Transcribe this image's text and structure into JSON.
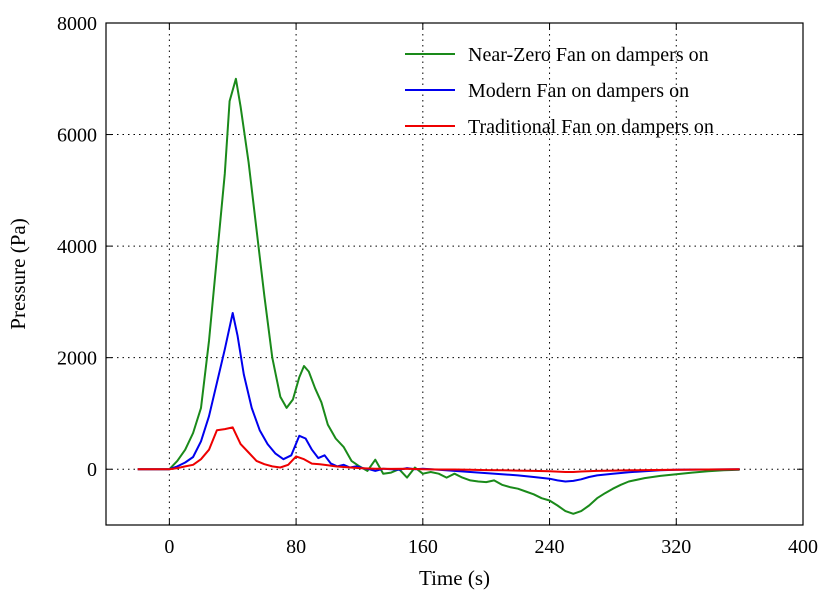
{
  "chart_data": {
    "type": "line",
    "xlabel": "Time (s)",
    "ylabel": "Pressure (Pa)",
    "xlim": [
      -40,
      400
    ],
    "ylim": [
      -1000,
      8000
    ],
    "xticks": [
      0,
      80,
      160,
      240,
      320,
      400
    ],
    "yticks": [
      0,
      2000,
      4000,
      6000,
      8000
    ],
    "grid": true,
    "legend_position": "top-right",
    "series": [
      {
        "name": "Near-Zero Fan on dampers on",
        "color": "#1a8a1a",
        "points": [
          [
            -20,
            0
          ],
          [
            -10,
            0
          ],
          [
            0,
            0
          ],
          [
            5,
            150
          ],
          [
            10,
            350
          ],
          [
            15,
            650
          ],
          [
            20,
            1100
          ],
          [
            25,
            2300
          ],
          [
            30,
            3800
          ],
          [
            35,
            5300
          ],
          [
            38,
            6600
          ],
          [
            42,
            7000
          ],
          [
            45,
            6500
          ],
          [
            50,
            5500
          ],
          [
            55,
            4300
          ],
          [
            60,
            3100
          ],
          [
            65,
            2000
          ],
          [
            70,
            1300
          ],
          [
            74,
            1100
          ],
          [
            78,
            1250
          ],
          [
            82,
            1650
          ],
          [
            85,
            1850
          ],
          [
            88,
            1750
          ],
          [
            92,
            1450
          ],
          [
            96,
            1200
          ],
          [
            100,
            800
          ],
          [
            105,
            550
          ],
          [
            110,
            400
          ],
          [
            115,
            150
          ],
          [
            120,
            50
          ],
          [
            125,
            -30
          ],
          [
            130,
            170
          ],
          [
            135,
            -80
          ],
          [
            140,
            -60
          ],
          [
            145,
            0
          ],
          [
            150,
            -150
          ],
          [
            155,
            30
          ],
          [
            160,
            -80
          ],
          [
            165,
            -50
          ],
          [
            170,
            -80
          ],
          [
            175,
            -150
          ],
          [
            180,
            -80
          ],
          [
            185,
            -150
          ],
          [
            190,
            -200
          ],
          [
            195,
            -220
          ],
          [
            200,
            -230
          ],
          [
            205,
            -200
          ],
          [
            210,
            -280
          ],
          [
            215,
            -320
          ],
          [
            220,
            -350
          ],
          [
            225,
            -400
          ],
          [
            230,
            -450
          ],
          [
            235,
            -520
          ],
          [
            240,
            -560
          ],
          [
            245,
            -650
          ],
          [
            250,
            -750
          ],
          [
            255,
            -800
          ],
          [
            260,
            -750
          ],
          [
            265,
            -650
          ],
          [
            270,
            -520
          ],
          [
            275,
            -430
          ],
          [
            280,
            -350
          ],
          [
            285,
            -280
          ],
          [
            290,
            -220
          ],
          [
            300,
            -160
          ],
          [
            310,
            -120
          ],
          [
            320,
            -90
          ],
          [
            330,
            -60
          ],
          [
            340,
            -35
          ],
          [
            350,
            -20
          ],
          [
            360,
            -10
          ]
        ]
      },
      {
        "name": "Modern Fan on dampers on",
        "color": "#0000ee",
        "points": [
          [
            -20,
            0
          ],
          [
            -10,
            0
          ],
          [
            0,
            0
          ],
          [
            5,
            50
          ],
          [
            10,
            120
          ],
          [
            15,
            220
          ],
          [
            20,
            500
          ],
          [
            25,
            950
          ],
          [
            30,
            1550
          ],
          [
            35,
            2150
          ],
          [
            40,
            2800
          ],
          [
            43,
            2400
          ],
          [
            47,
            1700
          ],
          [
            52,
            1100
          ],
          [
            57,
            700
          ],
          [
            62,
            450
          ],
          [
            67,
            280
          ],
          [
            72,
            180
          ],
          [
            77,
            250
          ],
          [
            82,
            600
          ],
          [
            86,
            550
          ],
          [
            90,
            350
          ],
          [
            94,
            200
          ],
          [
            98,
            250
          ],
          [
            102,
            100
          ],
          [
            106,
            50
          ],
          [
            110,
            80
          ],
          [
            114,
            30
          ],
          [
            118,
            50
          ],
          [
            122,
            20
          ],
          [
            126,
            0
          ],
          [
            130,
            -30
          ],
          [
            135,
            10
          ],
          [
            140,
            0
          ],
          [
            145,
            -10
          ],
          [
            150,
            20
          ],
          [
            155,
            0
          ],
          [
            160,
            10
          ],
          [
            170,
            -10
          ],
          [
            180,
            -30
          ],
          [
            190,
            -50
          ],
          [
            200,
            -70
          ],
          [
            210,
            -90
          ],
          [
            220,
            -110
          ],
          [
            230,
            -140
          ],
          [
            240,
            -170
          ],
          [
            245,
            -200
          ],
          [
            250,
            -220
          ],
          [
            255,
            -210
          ],
          [
            260,
            -180
          ],
          [
            265,
            -140
          ],
          [
            270,
            -110
          ],
          [
            280,
            -80
          ],
          [
            290,
            -55
          ],
          [
            300,
            -35
          ],
          [
            310,
            -20
          ],
          [
            320,
            -10
          ],
          [
            340,
            -5
          ],
          [
            360,
            0
          ]
        ]
      },
      {
        "name": "Traditional Fan on dampers on",
        "color": "#ee0000",
        "points": [
          [
            -20,
            0
          ],
          [
            -10,
            0
          ],
          [
            0,
            0
          ],
          [
            5,
            20
          ],
          [
            10,
            50
          ],
          [
            15,
            80
          ],
          [
            20,
            180
          ],
          [
            25,
            350
          ],
          [
            30,
            700
          ],
          [
            35,
            720
          ],
          [
            40,
            750
          ],
          [
            45,
            450
          ],
          [
            50,
            300
          ],
          [
            55,
            150
          ],
          [
            60,
            90
          ],
          [
            65,
            50
          ],
          [
            70,
            30
          ],
          [
            75,
            80
          ],
          [
            80,
            230
          ],
          [
            85,
            180
          ],
          [
            90,
            100
          ],
          [
            95,
            90
          ],
          [
            100,
            70
          ],
          [
            105,
            50
          ],
          [
            110,
            40
          ],
          [
            120,
            20
          ],
          [
            130,
            10
          ],
          [
            140,
            5
          ],
          [
            150,
            10
          ],
          [
            160,
            0
          ],
          [
            170,
            -5
          ],
          [
            180,
            -5
          ],
          [
            190,
            -10
          ],
          [
            200,
            -15
          ],
          [
            210,
            -20
          ],
          [
            220,
            -25
          ],
          [
            230,
            -30
          ],
          [
            240,
            -35
          ],
          [
            250,
            -50
          ],
          [
            255,
            -50
          ],
          [
            260,
            -40
          ],
          [
            270,
            -30
          ],
          [
            280,
            -25
          ],
          [
            290,
            -20
          ],
          [
            300,
            -15
          ],
          [
            320,
            -10
          ],
          [
            340,
            -5
          ],
          [
            360,
            0
          ]
        ]
      }
    ]
  }
}
